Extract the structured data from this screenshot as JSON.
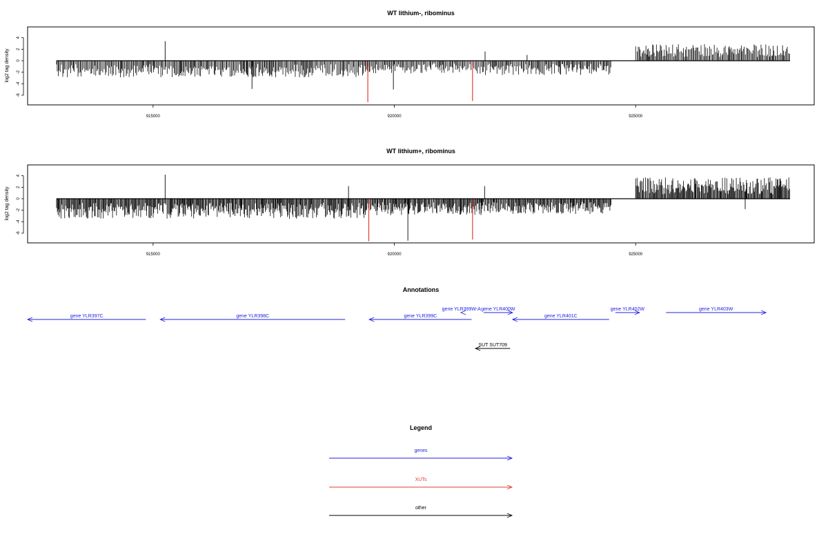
{
  "chart_data": [
    {
      "type": "bar",
      "title": "WT lithium-, ribominus",
      "ylabel": "log2 tag density",
      "xlabel": "",
      "xlim": [
        912400,
        928700
      ],
      "ylim": [
        -7.2,
        5.4
      ],
      "yticks": [
        -6,
        -4,
        -2,
        0,
        2,
        4
      ],
      "xticks": [
        915000,
        920000,
        925000
      ],
      "xtick_labels": [
        "915000",
        "920000",
        "925000"
      ],
      "track_start": 913000,
      "track_end": 928200,
      "profile": [
        {
          "from": 913000,
          "to": 919400,
          "v": -2.4
        },
        {
          "from": 919400,
          "to": 921800,
          "v": -1.9
        },
        {
          "from": 921800,
          "to": 924500,
          "v": -2.1
        },
        {
          "from": 924500,
          "to": 925000,
          "v": 0
        },
        {
          "from": 925000,
          "to": 928200,
          "v": 2.4
        }
      ],
      "peaks": [
        {
          "x": 915250,
          "value": 3.4
        },
        {
          "x": 921880,
          "value": 1.6
        },
        {
          "x": 922750,
          "value": 1.0
        },
        {
          "x": 919450,
          "value": -7.2,
          "color": "#e03c31"
        },
        {
          "x": 921620,
          "value": -7.0,
          "color": "#e03c31"
        },
        {
          "x": 919980,
          "value": -5.0
        },
        {
          "x": 917050,
          "value": -4.9
        }
      ]
    },
    {
      "type": "bar",
      "title": "WT lithium+, ribominus",
      "ylabel": "log2 tag density",
      "xlabel": "",
      "xlim": [
        912400,
        928700
      ],
      "ylim": [
        -7.2,
        5.4
      ],
      "yticks": [
        -6,
        -4,
        -2,
        0,
        2,
        4
      ],
      "xticks": [
        915000,
        920000,
        925000
      ],
      "xtick_labels": [
        "915000",
        "920000",
        "925000"
      ],
      "track_start": 913000,
      "track_end": 928200,
      "profile": [
        {
          "from": 913000,
          "to": 919400,
          "v": -2.9
        },
        {
          "from": 919400,
          "to": 921800,
          "v": -2.4
        },
        {
          "from": 921800,
          "to": 924500,
          "v": -2.2
        },
        {
          "from": 924500,
          "to": 925000,
          "v": 0
        },
        {
          "from": 925000,
          "to": 928200,
          "v": 3.1
        }
      ],
      "peaks": [
        {
          "x": 915250,
          "value": 4.2
        },
        {
          "x": 919050,
          "value": 2.2
        },
        {
          "x": 921870,
          "value": 2.2
        },
        {
          "x": 919470,
          "value": -7.4,
          "color": "#e03c31"
        },
        {
          "x": 921620,
          "value": -7.1,
          "color": "#e03c31"
        },
        {
          "x": 920280,
          "value": -7.3
        },
        {
          "x": 927270,
          "value": -1.8
        }
      ]
    }
  ],
  "annotations": {
    "title": "Annotations",
    "features": [
      {
        "label": "gene YLR397C",
        "start": 914850,
        "end": 912400,
        "row": 1,
        "color": "#2020e0"
      },
      {
        "label": "gene YLR398C",
        "start": 918980,
        "end": 915150,
        "row": 1,
        "color": "#2020e0"
      },
      {
        "label": "gene YLR399C",
        "start": 921600,
        "end": 919480,
        "row": 1,
        "color": "#2020e0"
      },
      {
        "label": "gene YLR399W-A",
        "start": 921400,
        "end": 921380,
        "row": 0,
        "color": "#2020e0"
      },
      {
        "label": "gene YLR400W",
        "start": 921850,
        "end": 922450,
        "row": 0,
        "color": "#2020e0"
      },
      {
        "label": "gene YLR401C",
        "start": 924450,
        "end": 922450,
        "row": 1,
        "color": "#2020e0"
      },
      {
        "label": "gene YLR402W",
        "start": 924580,
        "end": 925080,
        "row": 0,
        "color": "#2020e0"
      },
      {
        "label": "gene YLR403W",
        "start": 925630,
        "end": 927700,
        "row": 0,
        "color": "#2020e0"
      },
      {
        "label": "SUT SUT709",
        "start": 922400,
        "end": 921680,
        "row": 2,
        "color": "#000000"
      }
    ]
  },
  "legend": {
    "title": "Legend",
    "items": [
      {
        "label": "genes",
        "color": "#2020e0"
      },
      {
        "label": "XUTs",
        "color": "#e03c31"
      },
      {
        "label": "other",
        "color": "#000000"
      }
    ]
  }
}
